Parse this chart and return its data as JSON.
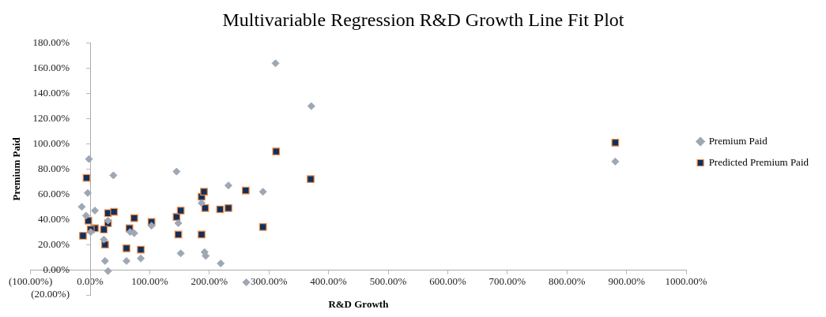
{
  "chart_data": {
    "type": "scatter",
    "title": "Multivariable Regression R&D Growth Line Fit Plot",
    "xlabel": "R&D Growth",
    "ylabel": "Premium Paid",
    "xlim": [
      -100,
      1000
    ],
    "xticks": [
      {
        "value": -100,
        "label": "(100.00%)"
      },
      {
        "value": 0,
        "label": "0.00%"
      },
      {
        "value": 100,
        "label": "100.00%"
      },
      {
        "value": 200,
        "label": "200.00%"
      },
      {
        "value": 300,
        "label": "300.00%"
      },
      {
        "value": 400,
        "label": "400.00%"
      },
      {
        "value": 500,
        "label": "500.00%"
      },
      {
        "value": 600,
        "label": "600.00%"
      },
      {
        "value": 700,
        "label": "700.00%"
      },
      {
        "value": 800,
        "label": "800.00%"
      },
      {
        "value": 900,
        "label": "900.00%"
      },
      {
        "value": 1000,
        "label": "1000.00%"
      }
    ],
    "ylim": [
      -20,
      180
    ],
    "yticks": [
      {
        "value": -20,
        "label": "(20.00%)"
      },
      {
        "value": 0,
        "label": "0.00%"
      },
      {
        "value": 20,
        "label": "20.00%"
      },
      {
        "value": 40,
        "label": "40.00%"
      },
      {
        "value": 60,
        "label": "60.00%"
      },
      {
        "value": 80,
        "label": "80.00%"
      },
      {
        "value": 100,
        "label": "100.00%"
      },
      {
        "value": 120,
        "label": "120.00%"
      },
      {
        "value": 140,
        "label": "140.00%"
      },
      {
        "value": 160,
        "label": "160.00%"
      },
      {
        "value": 180,
        "label": "180.00%"
      }
    ],
    "grid": false,
    "legend": "right",
    "series": [
      {
        "name": "Premium Paid",
        "color": "#9ea7b4",
        "marker": "diamond",
        "x": [
          -2,
          -4,
          -14,
          -7,
          8,
          39,
          145,
          232,
          187,
          30,
          23,
          25,
          30,
          61,
          85,
          74,
          67,
          103,
          148,
          152,
          192,
          194,
          219,
          262,
          1,
          290,
          311,
          371,
          881
        ],
        "values": [
          88,
          61,
          50,
          43,
          47,
          75,
          78,
          67,
          53,
          39,
          24,
          7,
          -1,
          7,
          9,
          29,
          30,
          35,
          37,
          13,
          14,
          11,
          5,
          -10,
          30,
          62,
          164,
          130,
          86
        ]
      },
      {
        "name": "Predicted Premium Paid",
        "color": "#0e3060",
        "marker": "square",
        "x": [
          -6,
          -3,
          -12,
          8,
          1,
          30,
          40,
          30,
          23,
          25,
          61,
          85,
          66,
          74,
          103,
          145,
          152,
          148,
          187,
          187,
          191,
          193,
          218,
          232,
          261,
          312,
          370,
          290,
          881
        ],
        "values": [
          73,
          39,
          27,
          33,
          32,
          45,
          46,
          37,
          32,
          20,
          17,
          16,
          33,
          41,
          38,
          42,
          47,
          28,
          28,
          58,
          62,
          49,
          48,
          49,
          63,
          94,
          72,
          34,
          101
        ]
      }
    ]
  }
}
